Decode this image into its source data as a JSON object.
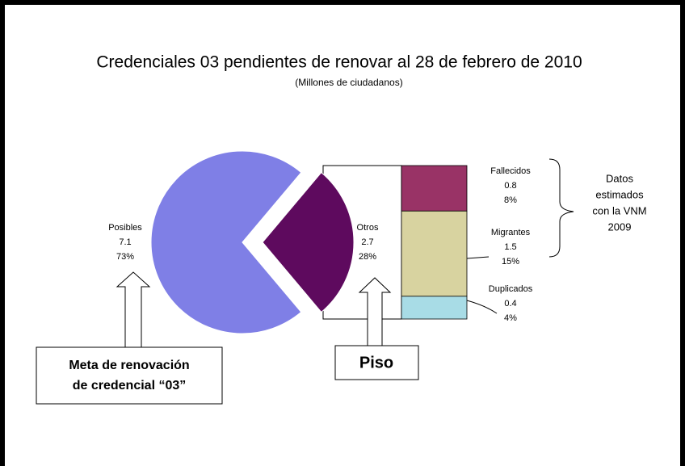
{
  "chart_data": {
    "type": "pie-of-bar",
    "title": "Credenciales 03 pendientes de renovar al 28 de febrero de 2010",
    "subtitle": "(Millones de ciudadanos)",
    "pie": {
      "categories": [
        "Posibles",
        "Otros"
      ],
      "values": [
        7.1,
        2.7
      ],
      "percents": [
        {
          "value": 73,
          "label": "73%"
        },
        {
          "value": 28,
          "label": "28%"
        }
      ],
      "colors": [
        "#7f7fe6",
        "#5e0a5e"
      ]
    },
    "bar": {
      "categories": [
        "Fallecidos",
        "Migrantes",
        "Duplicados"
      ],
      "values": [
        0.8,
        1.5,
        0.4
      ],
      "percents": [
        {
          "value": 8,
          "label": "8%"
        },
        {
          "value": 15,
          "label": "15%"
        },
        {
          "value": 4,
          "label": "4%"
        }
      ],
      "colors": [
        "#993366",
        "#d8d3a0",
        "#a8dce6"
      ]
    },
    "annotations": [
      "Datos",
      "estimados",
      "con la VNM",
      "2009"
    ],
    "callouts": [
      "Meta de renovación",
      "de credencial “03”",
      "Piso"
    ]
  }
}
